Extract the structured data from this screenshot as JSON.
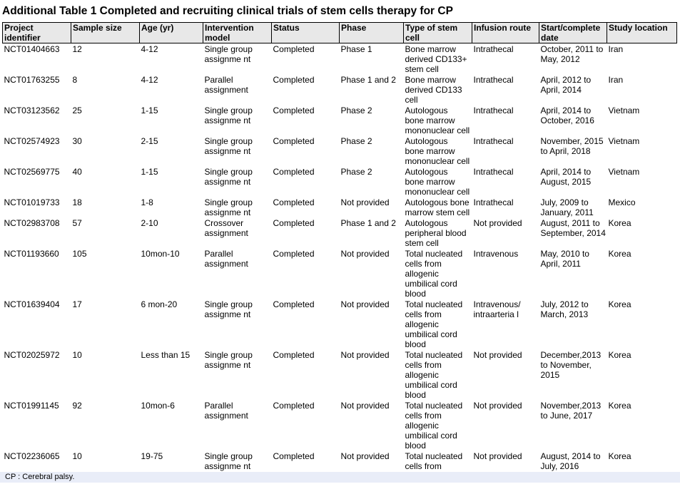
{
  "title": "Additional Table 1 Completed and recruiting clinical trials of stem cells therapy for CP",
  "footnote": "CP : Cerebral palsy.",
  "colors": {
    "page_bg": "#ffffff",
    "text": "#000000",
    "header_bg": "#e8e8e8",
    "border": "#000000",
    "footnote_bg": "#e9edf8"
  },
  "table": {
    "columns": [
      {
        "key": "project-identifier",
        "label": "Project\nidentifier"
      },
      {
        "key": "sample-size",
        "label": "Sample size"
      },
      {
        "key": "age-yr",
        "label": "Age (yr)"
      },
      {
        "key": "intervention-model",
        "label": "Intervention\nmodel"
      },
      {
        "key": "status",
        "label": "Status"
      },
      {
        "key": "phase",
        "label": "Phase"
      },
      {
        "key": "type-of-stem-cell",
        "label": "Type of stem\ncell"
      },
      {
        "key": "infusion-route",
        "label": "Infusion route"
      },
      {
        "key": "start-complete-date",
        "label": "Start/complete\ndate"
      },
      {
        "key": "study-location",
        "label": "Study location"
      }
    ],
    "rows": [
      [
        "NCT01404663",
        "12",
        "4-12",
        "Single group\nassignme nt",
        "Completed",
        "Phase 1",
        "Bone marrow\nderived CD133+\nstem cell",
        "Intrathecal",
        "October, 2011 to\nMay, 2012",
        "Iran"
      ],
      [
        "NCT01763255",
        "8",
        "4-12",
        "Parallel\nassignment",
        "Completed",
        "Phase 1 and 2",
        "Bone marrow\nderived CD133\ncell",
        "Intrathecal",
        "April, 2012 to\nApril, 2014",
        "Iran"
      ],
      [
        "NCT03123562",
        "25",
        "1-15",
        "Single group\nassignme nt",
        "Completed",
        "Phase 2",
        "Autologous\nbone marrow\nmononuclear cell",
        "Intrathecal",
        "April, 2014 to\nOctober, 2016",
        "Vietnam"
      ],
      [
        "NCT02574923",
        "30",
        "2-15",
        "Single group\nassignme nt",
        "Completed",
        "Phase 2",
        "Autologous\nbone marrow\nmononuclear cell",
        "Intrathecal",
        "November, 2015\nto April, 2018",
        "Vietnam"
      ],
      [
        "NCT02569775",
        "40",
        "1-15",
        "Single group\nassignme nt",
        "Completed",
        "Phase 2",
        "Autologous\nbone marrow\nmononuclear cell",
        "Intrathecal",
        "April, 2014 to\nAugust, 2015",
        "Vietnam"
      ],
      [
        "NCT01019733",
        "18",
        "1-8",
        "Single group\nassignme nt",
        "Completed",
        "Not provided",
        "Autologous bone\nmarrow stem cell",
        "Intrathecal",
        "July, 2009 to\nJanuary, 2011",
        "Mexico"
      ],
      [
        "NCT02983708",
        "57",
        "2-10",
        "Crossover\nassignment",
        "Completed",
        "Phase 1 and 2",
        "Autologous\nperipheral blood\nstem cell",
        "Not provided",
        "August, 2011 to\nSeptember, 2014",
        "Korea"
      ],
      [
        "NCT01193660",
        "105",
        "10mon-10",
        "Parallel\nassignment",
        "Completed",
        "Not provided",
        "Total nucleated\ncells from\nallogenic\numbilical cord\nblood",
        "Intravenous",
        "May, 2010 to\nApril, 2011",
        "Korea"
      ],
      [
        "NCT01639404",
        "17",
        "6 mon-20",
        "Single group\nassignme nt",
        "Completed",
        "Not provided",
        "Total nucleated\ncells from\nallogenic\numbilical cord\nblood",
        "Intravenous/\nintraarteria l",
        "July, 2012 to\nMarch, 2013",
        "Korea"
      ],
      [
        "NCT02025972",
        "10",
        "Less than 15",
        "Single group\nassignme nt",
        "Completed",
        "Not provided",
        "Total nucleated\ncells from\nallogenic\numbilical cord\nblood",
        "Not provided",
        "December,2013\nto November,\n2015",
        "Korea"
      ],
      [
        "NCT01991145",
        "92",
        "10mon-6",
        "Parallel\nassignment",
        "Completed",
        "Not provided",
        "Total nucleated\ncells from\nallogenic\numbilical cord\nblood",
        "Not provided",
        "November,2013\nto June, 2017",
        "Korea"
      ],
      [
        "NCT02236065",
        "10",
        "19-75",
        "Single group\nassignme nt",
        "Completed",
        "Not provided",
        "Total nucleated\ncells from",
        "Not provided",
        "August, 2014 to\nJuly, 2016",
        "Korea"
      ]
    ]
  }
}
